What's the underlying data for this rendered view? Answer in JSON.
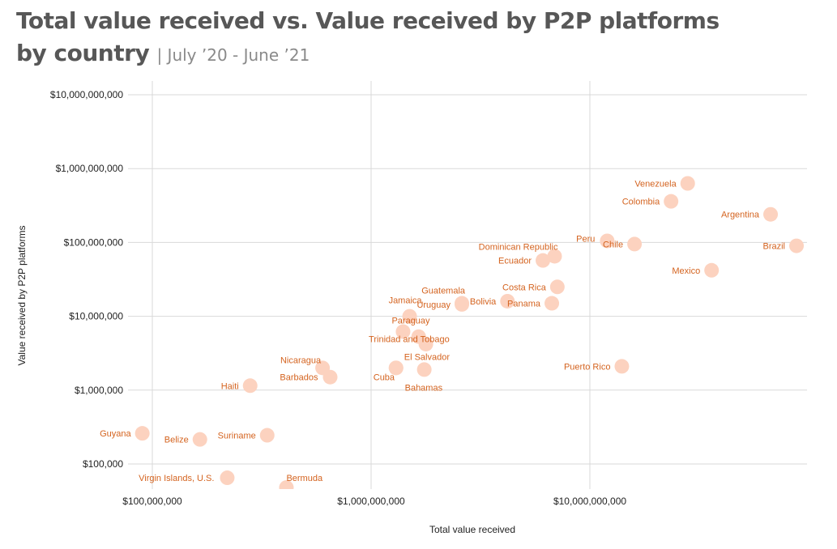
{
  "header": {
    "title_line1": "Total value received vs. Value received by P2P platforms",
    "title_line2": "by country",
    "subtitle": "| July ’20 - June ’21"
  },
  "colors": {
    "point": "#fcd2bf",
    "label": "#d4631f",
    "grid": "#d9d9d9",
    "text": "#222222"
  },
  "chart_data": {
    "type": "scatter",
    "title": "Total value received vs. Value received by P2P platforms by country",
    "subtitle": "| July ’20 - June ’21",
    "xlabel": "Total value received",
    "ylabel": "Value received by P2P platforms",
    "xscale": "log",
    "yscale": "log",
    "xlim": [
      100000000,
      100000000000
    ],
    "ylim": [
      50000,
      10000000000
    ],
    "grid": true,
    "x_ticks": [
      {
        "value": 100000000,
        "label": "$100,000,000"
      },
      {
        "value": 1000000000,
        "label": "$1,000,000,000"
      },
      {
        "value": 10000000000,
        "label": "$10,000,000,000"
      }
    ],
    "y_ticks": [
      {
        "value": 100000,
        "label": "$100,000"
      },
      {
        "value": 1000000,
        "label": "$1,000,000"
      },
      {
        "value": 10000000,
        "label": "$10,000,000"
      },
      {
        "value": 100000000,
        "label": "$100,000,000"
      },
      {
        "value": 1000000000,
        "label": "$1,000,000,000"
      },
      {
        "value": 10000000000,
        "label": "$10,000,000,000"
      }
    ],
    "points": [
      {
        "label": "Venezuela",
        "x": 28000000000,
        "y": 630000000
      },
      {
        "label": "Colombia",
        "x": 23500000000,
        "y": 360000000
      },
      {
        "label": "Argentina",
        "x": 67000000000,
        "y": 240000000
      },
      {
        "label": "Brazil",
        "x": 88000000000,
        "y": 90000000
      },
      {
        "label": "Peru",
        "x": 12000000000,
        "y": 105000000
      },
      {
        "label": "Chile",
        "x": 16000000000,
        "y": 95000000
      },
      {
        "label": "Mexico",
        "x": 36000000000,
        "y": 42000000
      },
      {
        "label": "Dominican Republic",
        "x": 6900000000,
        "y": 65000000
      },
      {
        "label": "Ecuador",
        "x": 6100000000,
        "y": 57000000
      },
      {
        "label": "Costa Rica",
        "x": 7100000000,
        "y": 25000000
      },
      {
        "label": "Panama",
        "x": 6700000000,
        "y": 15000000
      },
      {
        "label": "Guatemala",
        "x": 2600000000,
        "y": 15000000
      },
      {
        "label": "Uruguay",
        "x": 2600000000,
        "y": 14500000
      },
      {
        "label": "Bolivia",
        "x": 4200000000,
        "y": 16000000
      },
      {
        "label": "Jamaica",
        "x": 1500000000,
        "y": 10000000
      },
      {
        "label": "Paraguay",
        "x": 1400000000,
        "y": 6200000
      },
      {
        "label": "Trinidad and Tobago",
        "x": 1650000000,
        "y": 5300000
      },
      {
        "label": "",
        "x": 1780000000,
        "y": 4200000
      },
      {
        "label": "El Salvador",
        "x": 1300000000,
        "y": 2000000
      },
      {
        "label": "Cuba",
        "x": 1300000000,
        "y": 2000000
      },
      {
        "label": "Bahamas",
        "x": 1750000000,
        "y": 1900000
      },
      {
        "label": "Puerto Rico",
        "x": 14000000000,
        "y": 2100000
      },
      {
        "label": "Nicaragua",
        "x": 600000000,
        "y": 2000000
      },
      {
        "label": "Barbados",
        "x": 650000000,
        "y": 1500000
      },
      {
        "label": "Haiti",
        "x": 280000000,
        "y": 1150000
      },
      {
        "label": "Guyana",
        "x": 90000000,
        "y": 260000
      },
      {
        "label": "Belize",
        "x": 165000000,
        "y": 215000
      },
      {
        "label": "Suriname",
        "x": 335000000,
        "y": 245000
      },
      {
        "label": "Virgin Islands, U.S.",
        "x": 220000000,
        "y": 65000
      },
      {
        "label": "Bermuda",
        "x": 410000000,
        "y": 48000
      }
    ]
  }
}
